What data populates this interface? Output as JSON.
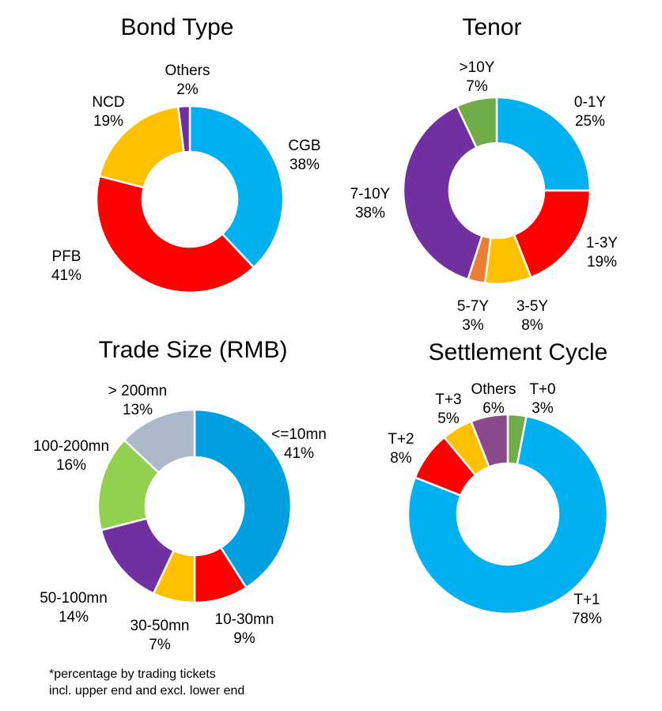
{
  "chart_data": [
    {
      "type": "pie",
      "style": "donut",
      "title": "Bond Type",
      "slices": [
        {
          "label": "CGB",
          "value_label": "38%",
          "value": 38,
          "color": "#00b0f0"
        },
        {
          "label": "PFB",
          "value_label": "41%",
          "value": 41,
          "color": "#ff0000"
        },
        {
          "label": "NCD",
          "value_label": "19%",
          "value": 19,
          "color": "#ffc000"
        },
        {
          "label": "Others",
          "value_label": "2%",
          "value": 2,
          "color": "#7030a0"
        }
      ]
    },
    {
      "type": "pie",
      "style": "donut",
      "title": "Tenor",
      "slices": [
        {
          "label": "0-1Y",
          "value_label": "25%",
          "value": 25,
          "color": "#00b0f0"
        },
        {
          "label": "1-3Y",
          "value_label": "19%",
          "value": 19,
          "color": "#ff0000"
        },
        {
          "label": "3-5Y",
          "value_label": "8%",
          "value": 8,
          "color": "#ffc000"
        },
        {
          "label": "5-7Y",
          "value_label": "3%",
          "value": 3,
          "color": "#ed7d31"
        },
        {
          "label": "7-10Y",
          "value_label": "38%",
          "value": 38,
          "color": "#7030a0"
        },
        {
          "label": ">10Y",
          "value_label": "7%",
          "value": 7,
          "color": "#70ad47"
        }
      ]
    },
    {
      "type": "pie",
      "style": "donut",
      "title": "Trade Size (RMB)",
      "slices": [
        {
          "label": "<=10mn",
          "value_label": "41%",
          "value": 41,
          "color": "#00a0e0"
        },
        {
          "label": "10-30mn",
          "value_label": "9%",
          "value": 9,
          "color": "#ff0000"
        },
        {
          "label": "30-50mn",
          "value_label": "7%",
          "value": 7,
          "color": "#ffc000"
        },
        {
          "label": "50-100mn",
          "value_label": "14%",
          "value": 14,
          "color": "#7030a0"
        },
        {
          "label": "100-200mn",
          "value_label": "16%",
          "value": 16,
          "color": "#92d050"
        },
        {
          "label": "> 200mn",
          "value_label": "13%",
          "value": 13,
          "color": "#adb9ca"
        }
      ]
    },
    {
      "type": "pie",
      "style": "donut",
      "title": "Settlement Cycle",
      "slices": [
        {
          "label": "T+0",
          "value_label": "3%",
          "value": 3,
          "color": "#70ad47"
        },
        {
          "label": "T+1",
          "value_label": "78%",
          "value": 78,
          "color": "#00b0f0"
        },
        {
          "label": "T+2",
          "value_label": "8%",
          "value": 8,
          "color": "#ff0000"
        },
        {
          "label": "T+3",
          "value_label": "5%",
          "value": 5,
          "color": "#ffc000"
        },
        {
          "label": "Others",
          "value_label": "6%",
          "value": 6,
          "color": "#8b4a8b"
        }
      ]
    }
  ],
  "footnote": {
    "line1": "*percentage by trading tickets",
    "line2": "incl. upper end and excl. lower end"
  }
}
